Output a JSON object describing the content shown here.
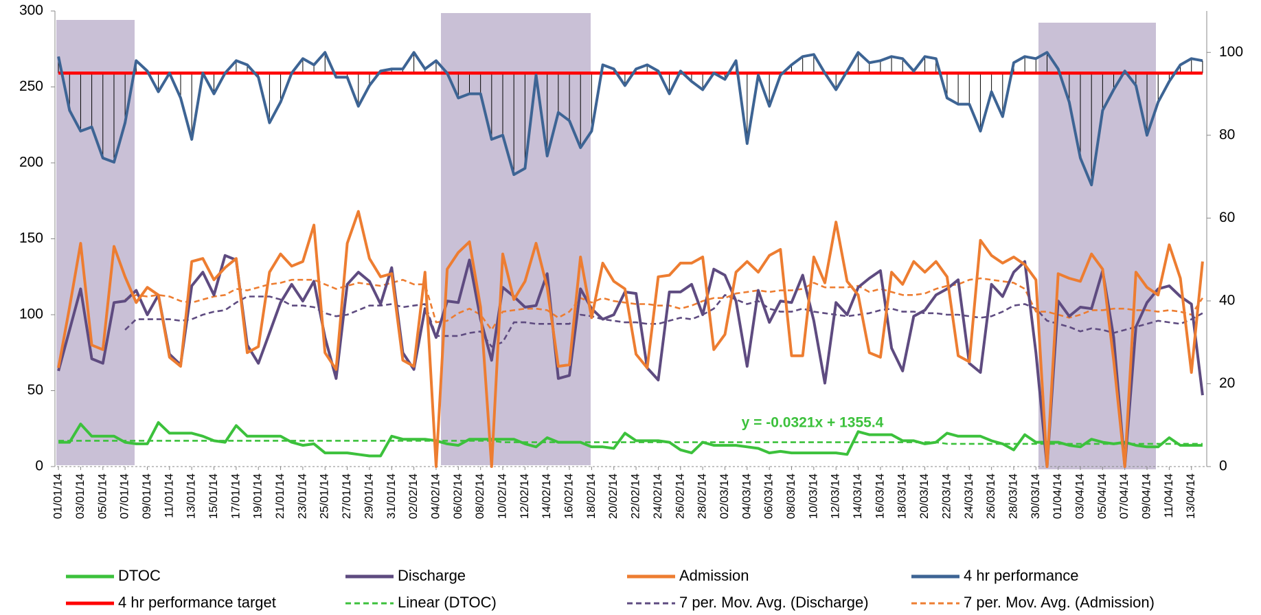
{
  "chart_data": {
    "type": "line",
    "categories": [
      "01/01/14",
      null,
      "03/01/14",
      null,
      "05/01/14",
      null,
      "07/01/14",
      null,
      "09/01/14",
      null,
      "11/01/14",
      null,
      "13/01/14",
      null,
      "15/01/14",
      null,
      "17/01/14",
      null,
      "19/01/14",
      null,
      "21/01/14",
      null,
      "23/01/14",
      null,
      "25/01/14",
      null,
      "27/01/14",
      null,
      "29/01/14",
      null,
      "31/01/14",
      null,
      "02/02/14",
      null,
      "04/02/14",
      null,
      "06/02/14",
      null,
      "08/02/14",
      null,
      "10/02/14",
      null,
      "12/02/14",
      null,
      "14/02/14",
      null,
      "16/02/14",
      null,
      "18/02/14",
      null,
      "20/02/14",
      null,
      "22/02/14",
      null,
      "24/02/14",
      null,
      "26/02/14",
      null,
      "28/02/14",
      null,
      "02/03/14",
      null,
      "04/03/14",
      null,
      "06/03/14",
      null,
      "08/03/14",
      null,
      "10/03/14",
      null,
      "12/03/14",
      null,
      "14/03/14",
      null,
      "16/03/14",
      null,
      "18/03/14",
      null,
      "20/03/14",
      null,
      "22/03/14",
      null,
      "24/03/14",
      null,
      "26/03/14",
      null,
      "28/03/14",
      null,
      "30/03/14",
      null,
      "01/04/14",
      null,
      "03/04/14",
      null,
      "05/04/14",
      null,
      "07/04/14",
      null,
      "09/04/14",
      null,
      "11/04/14",
      null,
      "13/04/14",
      null
    ],
    "ylim": [
      0,
      300
    ],
    "yticks": [
      0,
      50,
      100,
      150,
      200,
      250,
      300
    ],
    "y2lim": [
      0,
      110
    ],
    "y2ticks": [
      0,
      20,
      40,
      60,
      80,
      100
    ],
    "droplines": true,
    "series": [
      {
        "name": "DTOC",
        "color": "#3cc13c",
        "dashed": false,
        "values": [
          16,
          16,
          28,
          20,
          20,
          20,
          16,
          15,
          15,
          29,
          22,
          22,
          22,
          20,
          17,
          16,
          27,
          20,
          20,
          20,
          20,
          16,
          14,
          15,
          9,
          9,
          9,
          8,
          7,
          7,
          20,
          18,
          18,
          18,
          17,
          15,
          14,
          18,
          18,
          18,
          18,
          18,
          15,
          13,
          19,
          16,
          16,
          16,
          13,
          13,
          12,
          22,
          17,
          17,
          17,
          16,
          11,
          9,
          16,
          14,
          14,
          14,
          13,
          12,
          9,
          10,
          9,
          9,
          9,
          9,
          9,
          8,
          23,
          21,
          21,
          21,
          17,
          17,
          15,
          16,
          22,
          20,
          20,
          20,
          17,
          15,
          11,
          21,
          16,
          16,
          16,
          14,
          13,
          18,
          16,
          15,
          16,
          14,
          13,
          13,
          19,
          14,
          14,
          14
        ]
      },
      {
        "name": "Discharge",
        "color": "#5e4b80",
        "dashed": false,
        "values": [
          63,
          90,
          117,
          71,
          68,
          108,
          109,
          116,
          100,
          113,
          74,
          67,
          119,
          128,
          113,
          139,
          136,
          80,
          68,
          88,
          108,
          120,
          109,
          122,
          85,
          58,
          120,
          128,
          122,
          107,
          131,
          75,
          64,
          104,
          85,
          109,
          108,
          136,
          97,
          70,
          118,
          112,
          105,
          106,
          127,
          58,
          60,
          117,
          104,
          97,
          100,
          115,
          114,
          65,
          57,
          115,
          115,
          120,
          100,
          130,
          126,
          109,
          66,
          116,
          95,
          109,
          108,
          126,
          96,
          55,
          108,
          100,
          118,
          124,
          129,
          78,
          63,
          99,
          103,
          113,
          117,
          123,
          68,
          62,
          120,
          112,
          128,
          135,
          75,
          0,
          109,
          99,
          105,
          104,
          129,
          85,
          0,
          92,
          108,
          117,
          119,
          112,
          107,
          47
        ]
      },
      {
        "name": "Admission",
        "color": "#ed7d31",
        "dashed": false,
        "values": [
          65,
          105,
          147,
          80,
          77,
          145,
          125,
          108,
          118,
          113,
          72,
          66,
          135,
          137,
          123,
          131,
          137,
          75,
          79,
          128,
          140,
          132,
          135,
          159,
          75,
          64,
          147,
          168,
          137,
          125,
          127,
          70,
          66,
          128,
          0,
          130,
          141,
          148,
          105,
          0,
          140,
          110,
          122,
          147,
          118,
          66,
          67,
          138,
          98,
          134,
          122,
          117,
          74,
          65,
          125,
          126,
          134,
          134,
          138,
          77,
          87,
          128,
          135,
          128,
          139,
          143,
          73,
          73,
          138,
          121,
          161,
          122,
          113,
          75,
          72,
          128,
          120,
          135,
          128,
          135,
          125,
          73,
          69,
          149,
          139,
          134,
          138,
          133,
          123,
          0,
          127,
          124,
          122,
          140,
          130,
          70,
          0,
          128,
          118,
          113,
          146,
          124,
          62,
          135
        ]
      },
      {
        "name": "4 hr performance",
        "color": "#3d6494",
        "dashed": false,
        "axis": "y2",
        "values": [
          99,
          86,
          81,
          82,
          74.5,
          73.5,
          83,
          98,
          95.5,
          90.5,
          95,
          89,
          79,
          95,
          90,
          95,
          98,
          97,
          94,
          83,
          88,
          95,
          98.5,
          97,
          100,
          94,
          94,
          87,
          92,
          95.5,
          96,
          96,
          100,
          96,
          98,
          95,
          89,
          90,
          90,
          79,
          80,
          70.5,
          72,
          94.5,
          75,
          85.5,
          83.5,
          77,
          81,
          97,
          96,
          92,
          96,
          97,
          95.5,
          90,
          95.5,
          93,
          91,
          95,
          93.5,
          98,
          78,
          94.5,
          87,
          94.5,
          97,
          99,
          99.5,
          95,
          91,
          95.5,
          100,
          97.5,
          98,
          99,
          98.5,
          95.5,
          99,
          98.5,
          89,
          87.5,
          87.5,
          81,
          90.5,
          84.5,
          97.5,
          99,
          98.5,
          100,
          96,
          88,
          74.5,
          68,
          86,
          91,
          95.5,
          92,
          80,
          88,
          93,
          97,
          98.5,
          98
        ]
      },
      {
        "name": "4 hr performance target",
        "color": "#ff0000",
        "dashed": false,
        "axis": "y2",
        "values": [
          95,
          95,
          95,
          95,
          95,
          95,
          95,
          95,
          95,
          95,
          95,
          95,
          95,
          95,
          95,
          95,
          95,
          95,
          95,
          95,
          95,
          95,
          95,
          95,
          95,
          95,
          95,
          95,
          95,
          95,
          95,
          95,
          95,
          95,
          95,
          95,
          95,
          95,
          95,
          95,
          95,
          95,
          95,
          95,
          95,
          95,
          95,
          95,
          95,
          95,
          95,
          95,
          95,
          95,
          95,
          95,
          95,
          95,
          95,
          95,
          95,
          95,
          95,
          95,
          95,
          95,
          95,
          95,
          95,
          95,
          95,
          95,
          95,
          95,
          95,
          95,
          95,
          95,
          95,
          95,
          95,
          95,
          95,
          95,
          95,
          95,
          95,
          95,
          95,
          95,
          95,
          95,
          95,
          95,
          95,
          95,
          95,
          95,
          95,
          95,
          95,
          95,
          95,
          95
        ]
      },
      {
        "name": "Linear (DTOC)",
        "color": "#3cc13c",
        "dashed": true,
        "equation": "y = -0.0321x + 1355.4",
        "values": [
          17,
          17,
          17,
          17,
          17,
          17,
          17,
          17,
          17,
          17,
          17,
          17,
          17,
          17,
          17,
          17,
          17,
          17,
          17,
          17,
          17,
          17,
          17,
          17,
          17,
          17,
          17,
          17,
          17,
          17,
          17,
          17,
          17,
          17,
          17,
          17,
          17,
          17,
          17,
          17,
          16,
          16,
          16,
          16,
          16,
          16,
          16,
          16,
          16,
          16,
          16,
          16,
          16,
          16,
          16,
          16,
          16,
          16,
          16,
          16,
          16,
          16,
          16,
          16,
          16,
          16,
          16,
          16,
          16,
          16,
          16,
          16,
          16,
          16,
          16,
          16,
          16,
          16,
          16,
          16,
          15,
          15,
          15,
          15,
          15,
          15,
          15,
          15,
          15,
          15,
          15,
          15,
          15,
          15,
          15,
          15,
          15,
          15,
          15,
          15,
          15,
          15,
          15,
          15
        ]
      },
      {
        "name": "7 per. Mov. Avg. (Discharge)",
        "color": "#5e4b80",
        "dashed": true,
        "values": [
          null,
          null,
          null,
          null,
          null,
          null,
          90,
          97,
          97,
          97,
          97,
          96,
          97,
          100,
          102,
          103,
          108,
          112,
          112,
          112,
          110,
          106,
          106,
          105,
          101,
          99,
          100,
          103,
          106,
          106,
          107,
          105,
          106,
          107,
          86,
          86,
          86,
          88,
          89,
          79,
          82,
          95,
          95,
          94,
          94,
          94,
          94,
          100,
          99,
          97,
          96,
          95,
          95,
          94,
          94,
          96,
          98,
          97,
          100,
          104,
          113,
          110,
          107,
          109,
          104,
          102,
          102,
          104,
          102,
          101,
          100,
          99,
          100,
          101,
          103,
          104,
          102,
          102,
          101,
          101,
          100,
          100,
          99,
          98,
          99,
          102,
          106,
          107,
          104,
          96,
          94,
          92,
          89,
          91,
          90,
          88,
          90,
          92,
          94,
          96,
          95,
          94,
          97,
          101
        ]
      },
      {
        "name": "7 per. Mov. Avg. (Admission)",
        "color": "#ed7d31",
        "dashed": true,
        "values": [
          null,
          null,
          null,
          null,
          null,
          null,
          110,
          113,
          112,
          113,
          112,
          109,
          108,
          110,
          112,
          113,
          117,
          116,
          118,
          120,
          121,
          123,
          123,
          123,
          120,
          117,
          119,
          121,
          120,
          119,
          121,
          123,
          120,
          120,
          95,
          96,
          101,
          104,
          100,
          90,
          102,
          103,
          104,
          104,
          103,
          98,
          102,
          111,
          108,
          111,
          109,
          108,
          107,
          107,
          106,
          106,
          104,
          106,
          109,
          111,
          111,
          114,
          115,
          116,
          115,
          116,
          116,
          117,
          121,
          118,
          118,
          118,
          119,
          115,
          117,
          115,
          113,
          113,
          114,
          117,
          119,
          120,
          123,
          124,
          123,
          122,
          121,
          117,
          102,
          102,
          100,
          98,
          100,
          103,
          103,
          104,
          104,
          103,
          103,
          102,
          103,
          102,
          100,
          111
        ]
      }
    ]
  }
}
